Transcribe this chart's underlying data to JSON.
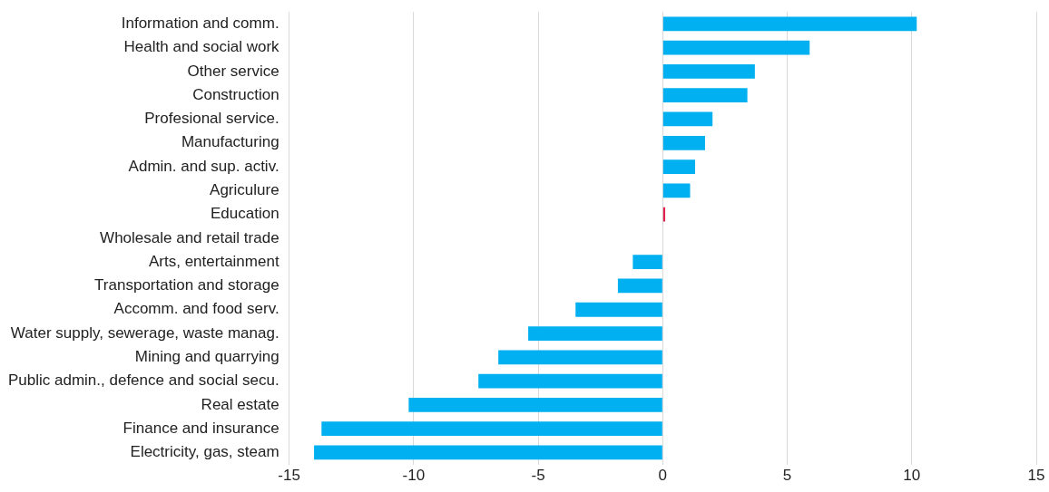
{
  "chart_data": {
    "type": "bar",
    "orientation": "horizontal",
    "categories": [
      "Information and comm.",
      "Health and social work",
      "Other service",
      "Construction",
      "Profesional service.",
      "Manufacturing",
      "Admin. and sup. activ.",
      "Agriculure",
      "Education",
      "Wholesale and retail trade",
      "Arts, entertainment",
      "Transportation and storage",
      "Accomm. and food serv.",
      "Water supply, sewerage, waste manag.",
      "Mining and quarrying",
      "Public admin., defence and social secu.",
      "Real estate",
      "Finance and insurance",
      "Electricity, gas, steam"
    ],
    "values": [
      10.2,
      5.9,
      3.7,
      3.4,
      2.0,
      1.7,
      1.3,
      1.1,
      0.1,
      0,
      -1.2,
      -1.8,
      -3.5,
      -5.4,
      -6.6,
      -7.4,
      -10.2,
      -13.7,
      -14.0
    ],
    "colors": [
      "#00b0f0",
      "#00b0f0",
      "#00b0f0",
      "#00b0f0",
      "#00b0f0",
      "#00b0f0",
      "#00b0f0",
      "#00b0f0",
      "#e0234e",
      "#00b0f0",
      "#00b0f0",
      "#00b0f0",
      "#00b0f0",
      "#00b0f0",
      "#00b0f0",
      "#00b0f0",
      "#00b0f0",
      "#00b0f0",
      "#00b0f0"
    ],
    "xlim": [
      -15,
      15
    ],
    "xticks": [
      -15,
      -10,
      -5,
      0,
      5,
      10,
      15
    ],
    "grid": "x",
    "legend": false
  }
}
